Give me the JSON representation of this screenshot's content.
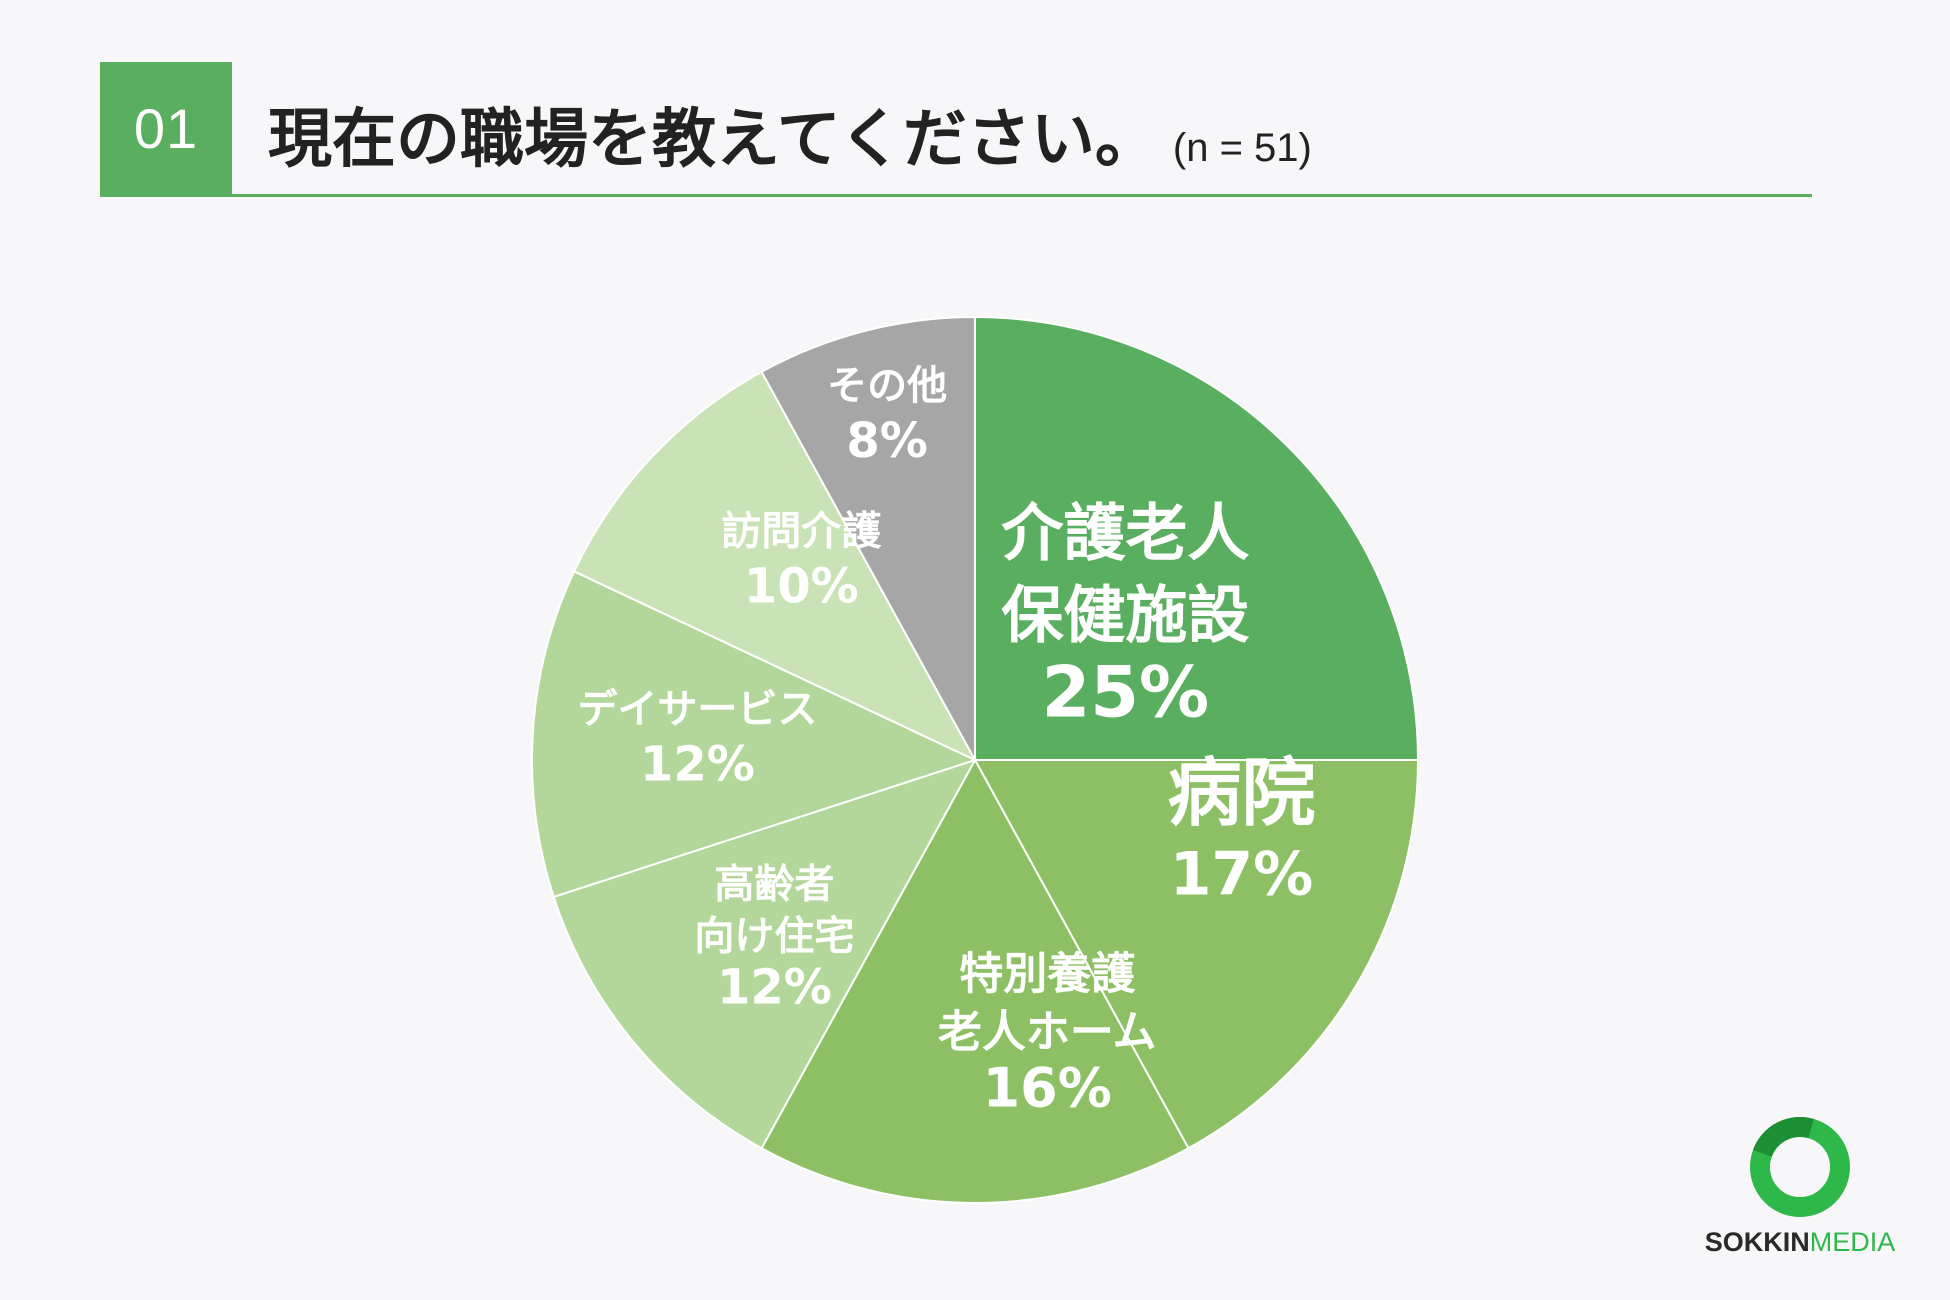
{
  "header": {
    "number": "01",
    "title": "現在の職場を教えてください。",
    "sample": "(n = 51)"
  },
  "logo": {
    "brand_bold": "SOKKIN",
    "brand_regular": "MEDIA",
    "colors": {
      "ring": "#2fb84a",
      "text": "#2a2a2a"
    }
  },
  "chart_data": {
    "type": "pie",
    "title": "現在の職場を教えてください。",
    "start": "12 o'clock, clockwise",
    "slices": [
      {
        "label": [
          "介護老人",
          "保健施設"
        ],
        "value": 25,
        "value_label": "25%",
        "color": "#5aae5f"
      },
      {
        "label": [
          "病院"
        ],
        "value": 17,
        "value_label": "17%",
        "color": "#8dc064"
      },
      {
        "label": [
          "特別養護",
          "老人ホーム"
        ],
        "value": 16,
        "value_label": "16%",
        "color": "#8dc064"
      },
      {
        "label": [
          "高齢者",
          "向け住宅"
        ],
        "value": 12,
        "value_label": "12%",
        "color": "#b3d69b"
      },
      {
        "label": [
          "デイサービス"
        ],
        "value": 12,
        "value_label": "12%",
        "color": "#b3d69b"
      },
      {
        "label": [
          "訪問介護"
        ],
        "value": 10,
        "value_label": "10%",
        "color": "#c9e2b6"
      },
      {
        "label": [
          "その他"
        ],
        "value": 8,
        "value_label": "8%",
        "color": "#a6a6a6"
      }
    ]
  }
}
